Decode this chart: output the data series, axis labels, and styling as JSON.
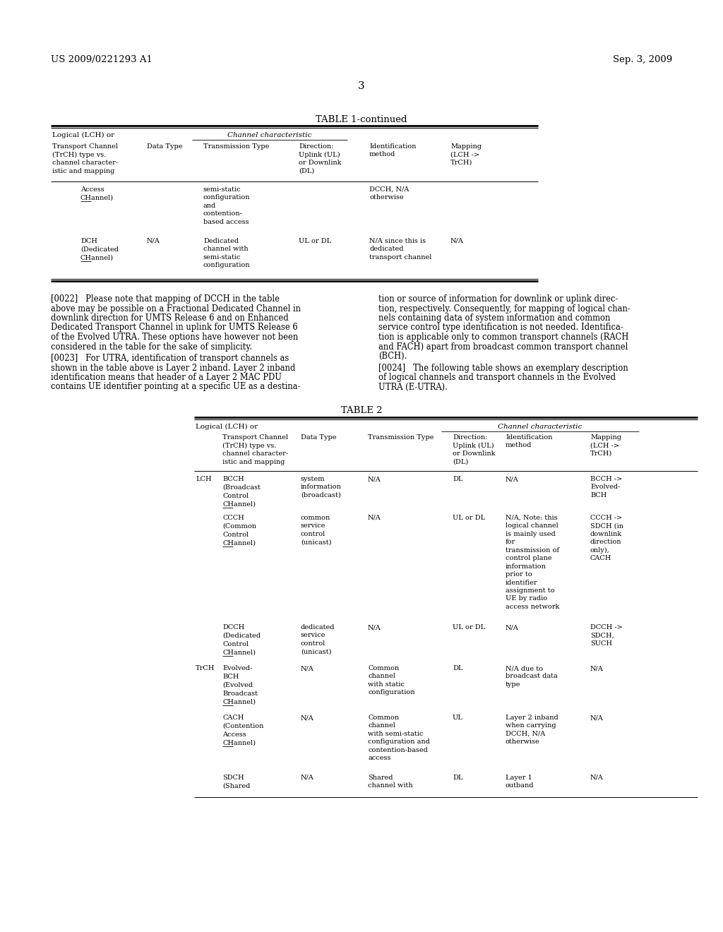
{
  "background_color": "#ffffff",
  "header_left": "US 2009/0221293 A1",
  "header_right": "Sep. 3, 2009",
  "page_number": "3",
  "table1_title": "TABLE 1-continued",
  "table2_title": "TABLE 2"
}
